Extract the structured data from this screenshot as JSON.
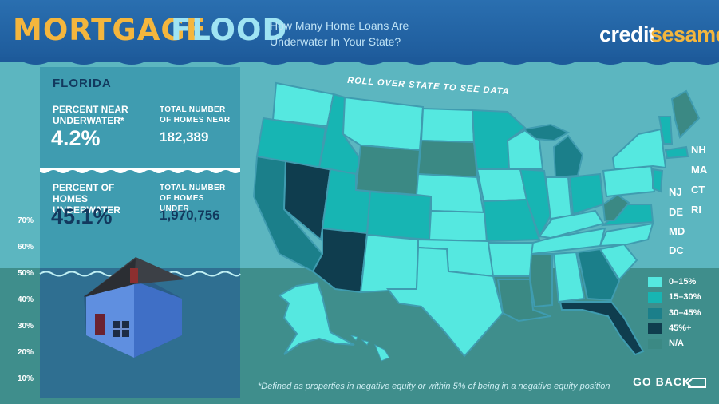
{
  "header": {
    "title_part1": "MORTGAGE",
    "title_part2": "FLOOD",
    "subtitle": "How Many Home Loans Are Underwater In Your State?",
    "brand_part1": "credit",
    "brand_part2": "sesame"
  },
  "panel": {
    "state": "FLORIDA",
    "near_label": "PERCENT NEAR UNDERWATER*",
    "near_value": "4.2%",
    "near_total_label": "TOTAL NUMBER OF HOMES NEAR",
    "near_total_value": "182,389",
    "under_label": "PERCENT OF HOMES UNDERWATER",
    "under_value": "45.1%",
    "under_total_label": "TOTAL NUMBER OF HOMES UNDER",
    "under_total_value": "1,970,756"
  },
  "gauge": {
    "labels": [
      "70%",
      "60%",
      "50%",
      "40%",
      "30%",
      "20%",
      "10%"
    ],
    "water_level_percent": 45.1
  },
  "map": {
    "instruction": "ROLL OVER STATE TO SEE DATA",
    "northeast_labels": [
      "NH",
      "MA",
      "CT",
      "RI"
    ],
    "midatlantic_labels": [
      "NJ",
      "DE",
      "MD",
      "DC"
    ]
  },
  "legend": [
    {
      "label": "0–15%",
      "color": "#55e8e0"
    },
    {
      "label": "15–30%",
      "color": "#17b5b3"
    },
    {
      "label": "30–45%",
      "color": "#1b7f8a"
    },
    {
      "label": "45%+",
      "color": "#0f3d4e"
    },
    {
      "label": "N/A",
      "color": "#3b8984"
    }
  ],
  "footnote": "*Defined as properties in negative equity or within 5% of being in a negative equity position",
  "go_back": {
    "label": "GO BACK",
    "icon": "return-arrow-icon"
  },
  "colors": {
    "gold": "#f4b63d",
    "header_blue": "#1d5a9a",
    "navy": "#12395e"
  }
}
